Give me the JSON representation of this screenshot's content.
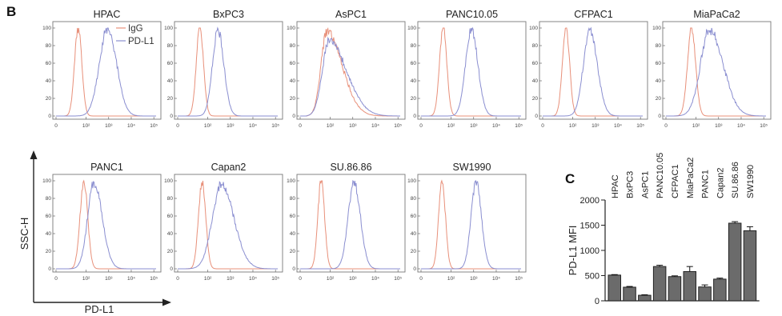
{
  "figure": {
    "panel_b_label": "B",
    "panel_c_label": "C"
  },
  "colors": {
    "igg": "#e8907a",
    "pdl1": "#8a8ed0",
    "bar_fill": "#6b6b6b",
    "axis": "#222222",
    "frame": "#777777"
  },
  "flow_axes": {
    "y_ticks": [
      "0",
      "20",
      "40",
      "60",
      "80",
      "100"
    ],
    "x_ticks": [
      "0",
      "10²",
      "10³",
      "10⁴",
      "10⁵"
    ],
    "gate_y_label": "SSC-H",
    "gate_x_label": "PD-L1"
  },
  "chart_data": [
    {
      "type": "line",
      "x_scale": "biexponential (log10 of PD-L1 intensity)",
      "ylim": [
        0,
        100
      ],
      "legend": {
        "placement": "top-right of first plot",
        "entries": [
          "IgG",
          "PD-L1"
        ]
      },
      "panels": [
        {
          "title": "HPAC",
          "series": [
            {
              "name": "IgG",
              "mode_log": 1.65,
              "width": 0.16,
              "peak": 100,
              "skew": 1.0
            },
            {
              "name": "PD-L1",
              "mode_log": 2.95,
              "width": 0.36,
              "peak": 100,
              "skew": 1.1
            }
          ]
        },
        {
          "title": "BxPC3",
          "series": [
            {
              "name": "IgG",
              "mode_log": 1.65,
              "width": 0.16,
              "peak": 100,
              "skew": 1.0
            },
            {
              "name": "PD-L1",
              "mode_log": 2.45,
              "width": 0.24,
              "peak": 97,
              "skew": 1.1
            }
          ]
        },
        {
          "title": "AsPC1",
          "series": [
            {
              "name": "IgG",
              "mode_log": 1.85,
              "width": 0.26,
              "peak": 95,
              "skew": 2.6
            },
            {
              "name": "PD-L1",
              "mode_log": 1.95,
              "width": 0.3,
              "peak": 85,
              "skew": 2.6
            }
          ]
        },
        {
          "title": "PANC10.05",
          "series": [
            {
              "name": "IgG",
              "mode_log": 1.65,
              "width": 0.16,
              "peak": 100,
              "skew": 1.0
            },
            {
              "name": "PD-L1",
              "mode_log": 2.9,
              "width": 0.26,
              "peak": 98,
              "skew": 1.1
            }
          ]
        },
        {
          "title": "CFPAC1",
          "series": [
            {
              "name": "IgG",
              "mode_log": 1.7,
              "width": 0.16,
              "peak": 100,
              "skew": 1.0
            },
            {
              "name": "PD-L1",
              "mode_log": 2.75,
              "width": 0.28,
              "peak": 98,
              "skew": 1.2
            }
          ]
        },
        {
          "title": "MiaPaCa2",
          "series": [
            {
              "name": "IgG",
              "mode_log": 1.8,
              "width": 0.18,
              "peak": 100,
              "skew": 1.0
            },
            {
              "name": "PD-L1",
              "mode_log": 2.6,
              "width": 0.4,
              "peak": 98,
              "skew": 1.5
            }
          ]
        },
        {
          "title": "PANC1",
          "series": [
            {
              "name": "IgG",
              "mode_log": 1.9,
              "width": 0.17,
              "peak": 100,
              "skew": 1.0
            },
            {
              "name": "PD-L1",
              "mode_log": 2.35,
              "width": 0.28,
              "peak": 98,
              "skew": 1.3
            }
          ]
        },
        {
          "title": "Capan2",
          "series": [
            {
              "name": "IgG",
              "mode_log": 1.75,
              "width": 0.16,
              "peak": 100,
              "skew": 1.0
            },
            {
              "name": "PD-L1",
              "mode_log": 2.6,
              "width": 0.4,
              "peak": 95,
              "skew": 1.4
            }
          ]
        },
        {
          "title": "SU.86.86",
          "series": [
            {
              "name": "IgG",
              "mode_log": 1.6,
              "width": 0.15,
              "peak": 100,
              "skew": 1.0
            },
            {
              "name": "PD-L1",
              "mode_log": 3.05,
              "width": 0.26,
              "peak": 98,
              "skew": 1.1
            }
          ]
        },
        {
          "title": "SW1990",
          "series": [
            {
              "name": "IgG",
              "mode_log": 1.6,
              "width": 0.15,
              "peak": 100,
              "skew": 1.0
            },
            {
              "name": "PD-L1",
              "mode_log": 3.1,
              "width": 0.22,
              "peak": 98,
              "skew": 1.1
            }
          ]
        }
      ]
    },
    {
      "type": "bar",
      "ylabel": "PD-L1 MFI",
      "ylim": [
        0,
        2000
      ],
      "y_ticks": [
        0,
        500,
        1000,
        1500,
        2000
      ],
      "categories": [
        "HPAC",
        "BxPC3",
        "AsPC1",
        "PANC10.05",
        "CFPAC1",
        "MiaPaCa2",
        "PANC1",
        "Capan2",
        "SU.86.86",
        "SW1990"
      ],
      "values": [
        510,
        270,
        110,
        680,
        480,
        580,
        275,
        430,
        1540,
        1390
      ],
      "errors": [
        10,
        15,
        10,
        25,
        15,
        100,
        40,
        20,
        30,
        80
      ]
    }
  ]
}
